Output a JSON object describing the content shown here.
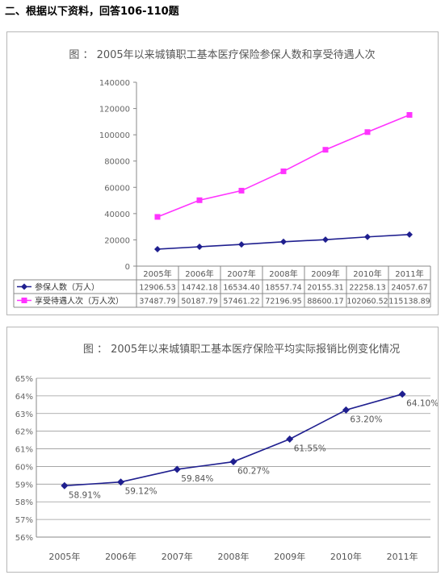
{
  "heading": "二、根据以下资料，回答106-110题",
  "chart_data": [
    {
      "type": "line",
      "title": "图 ： 2005年以来城镇职工基本医疗保险参保人数和享受待遇人次",
      "categories": [
        "2005年",
        "2006年",
        "2007年",
        "2008年",
        "2009年",
        "2010年",
        "2011年"
      ],
      "y_ticks": [
        "0",
        "20000",
        "40000",
        "60000",
        "80000",
        "100000",
        "120000",
        "140000"
      ],
      "ylim": [
        0,
        140000
      ],
      "grid": false,
      "legend": "data-table-left",
      "series": [
        {
          "name": "参保人数（万人）",
          "color": "#1f1f8f",
          "marker": "diamond",
          "values": [
            12906.53,
            14742.18,
            16534.4,
            18557.74,
            20155.31,
            22258.13,
            24057.67
          ],
          "labels": [
            "12906.53",
            "14742.18",
            "16534.40",
            "18557.74",
            "20155.31",
            "22258.13",
            "24057.67"
          ]
        },
        {
          "name": "享受待遇人次（万人次）",
          "color": "#ff33ff",
          "marker": "square",
          "values": [
            37487.79,
            50187.79,
            57461.22,
            72196.95,
            88600.17,
            102060.52,
            115138.89
          ],
          "labels": [
            "37487.79",
            "50187.79",
            "57461.22",
            "72196.95",
            "88600.17",
            "102060.52",
            "115138.89"
          ]
        }
      ]
    },
    {
      "type": "line",
      "title": "图 ： 2005年以来城镇职工基本医疗保险平均实际报销比例变化情况",
      "categories": [
        "2005年",
        "2006年",
        "2007年",
        "2008年",
        "2009年",
        "2010年",
        "2011年"
      ],
      "y_ticks": [
        "56%",
        "57%",
        "58%",
        "59%",
        "60%",
        "61%",
        "62%",
        "63%",
        "64%",
        "65%"
      ],
      "ylim": [
        56,
        65
      ],
      "grid": true,
      "series": [
        {
          "color": "#1f1f8f",
          "marker": "diamond",
          "values": [
            58.91,
            59.12,
            59.84,
            60.27,
            61.55,
            63.2,
            64.1
          ],
          "labels": [
            "58.91%",
            "59.12%",
            "59.84%",
            "60.27%",
            "61.55%",
            "63.20%",
            "64.10%"
          ]
        }
      ]
    }
  ]
}
